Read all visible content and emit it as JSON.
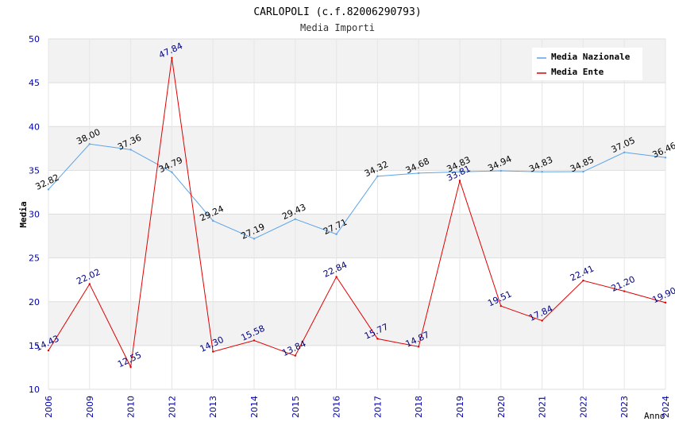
{
  "chart_data": {
    "type": "line",
    "title": "CARLOPOLI (c.f.82006290793)",
    "subtitle": "Media Importi",
    "xlabel": "Anno",
    "ylabel": "Media",
    "ylim": [
      10,
      50
    ],
    "yticks": [
      "10",
      "15",
      "20",
      "25",
      "30",
      "35",
      "40",
      "45",
      "50"
    ],
    "grid": true,
    "legend_position": "top-right",
    "categories": [
      "2006",
      "2009",
      "2010",
      "2012",
      "2013",
      "2014",
      "2015",
      "2016",
      "2017",
      "2018",
      "2019",
      "2020",
      "2021",
      "2022",
      "2023",
      "2024"
    ],
    "series": [
      {
        "name": "Media Nazionale",
        "color": "#5ba3e8",
        "label_color": "#000000",
        "values": [
          32.82,
          38.0,
          37.36,
          34.79,
          29.24,
          27.19,
          29.43,
          27.71,
          34.32,
          34.68,
          34.83,
          34.94,
          34.83,
          34.85,
          37.05,
          36.46
        ],
        "labels": [
          "32.82",
          "38.00",
          "37.36",
          "34.79",
          "29.24",
          "27.19",
          "29.43",
          "27.71",
          "34.32",
          "34.68",
          "34.83",
          "34.94",
          "34.83",
          "34.85",
          "37.05",
          "36.46"
        ]
      },
      {
        "name": "Media Ente",
        "color": "#e00000",
        "label_color": "#000080",
        "values": [
          14.43,
          22.02,
          12.55,
          47.84,
          14.3,
          15.58,
          13.84,
          22.84,
          15.77,
          14.87,
          33.81,
          19.51,
          17.84,
          22.41,
          21.2,
          19.9
        ],
        "labels": [
          "14.43",
          "22.02",
          "12.55",
          "47.84",
          "14.30",
          "15.58",
          "13.84",
          "22.84",
          "15.77",
          "14.87",
          "33.81",
          "19.51",
          "17.84",
          "22.41",
          "21.20",
          "19.90"
        ]
      }
    ]
  }
}
